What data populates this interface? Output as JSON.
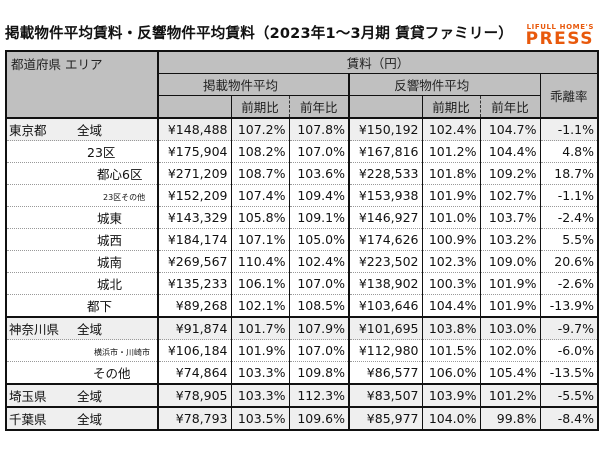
{
  "title": "掲載物件平均賃料・反響物件平均賃料（2023年1～3月期 賃貸ファミリー）",
  "logo": {
    "top": "LIFULL HOME'S",
    "bottom": "PRESS",
    "color": "#e8590c"
  },
  "header": {
    "area": "都道府県 エリア",
    "rent": "賃料（円）",
    "listed": "掲載物件平均",
    "response": "反響物件平均",
    "gap": "乖離率",
    "qoq": "前期比",
    "yoy": "前年比"
  },
  "rows": [
    {
      "pref": "東京都",
      "area": "全域",
      "listed": "¥148,488",
      "l_qoq": "107.2%",
      "l_yoy": "107.8%",
      "resp": "¥150,192",
      "r_qoq": "102.4%",
      "r_yoy": "104.7%",
      "gap": "-1.1%"
    },
    {
      "pref": "",
      "area": "23区",
      "listed": "¥175,904",
      "l_qoq": "108.2%",
      "l_yoy": "107.0%",
      "resp": "¥167,816",
      "r_qoq": "101.2%",
      "r_yoy": "104.4%",
      "gap": "4.8%"
    },
    {
      "pref": "",
      "area": "都心6区",
      "listed": "¥271,209",
      "l_qoq": "108.7%",
      "l_yoy": "103.6%",
      "resp": "¥228,533",
      "r_qoq": "101.8%",
      "r_yoy": "109.2%",
      "gap": "18.7%"
    },
    {
      "pref": "",
      "area": "23区その他",
      "listed": "¥152,209",
      "l_qoq": "107.4%",
      "l_yoy": "109.4%",
      "resp": "¥153,938",
      "r_qoq": "101.9%",
      "r_yoy": "102.7%",
      "gap": "-1.1%"
    },
    {
      "pref": "",
      "area": "城東",
      "listed": "¥143,329",
      "l_qoq": "105.8%",
      "l_yoy": "109.1%",
      "resp": "¥146,927",
      "r_qoq": "101.0%",
      "r_yoy": "103.7%",
      "gap": "-2.4%"
    },
    {
      "pref": "",
      "area": "城西",
      "listed": "¥184,174",
      "l_qoq": "107.1%",
      "l_yoy": "105.0%",
      "resp": "¥174,626",
      "r_qoq": "100.9%",
      "r_yoy": "103.2%",
      "gap": "5.5%"
    },
    {
      "pref": "",
      "area": "城南",
      "listed": "¥269,567",
      "l_qoq": "110.4%",
      "l_yoy": "102.4%",
      "resp": "¥223,502",
      "r_qoq": "102.3%",
      "r_yoy": "109.0%",
      "gap": "20.6%"
    },
    {
      "pref": "",
      "area": "城北",
      "listed": "¥135,233",
      "l_qoq": "106.1%",
      "l_yoy": "107.0%",
      "resp": "¥138,902",
      "r_qoq": "100.3%",
      "r_yoy": "101.9%",
      "gap": "-2.6%"
    },
    {
      "pref": "",
      "area": "都下",
      "listed": "¥89,268",
      "l_qoq": "102.1%",
      "l_yoy": "108.5%",
      "resp": "¥103,646",
      "r_qoq": "104.4%",
      "r_yoy": "101.9%",
      "gap": "-13.9%"
    },
    {
      "pref": "神奈川県",
      "area": "全域",
      "listed": "¥91,874",
      "l_qoq": "101.7%",
      "l_yoy": "107.9%",
      "resp": "¥101,695",
      "r_qoq": "103.8%",
      "r_yoy": "103.0%",
      "gap": "-9.7%"
    },
    {
      "pref": "",
      "area": "横浜市・川崎市",
      "listed": "¥106,184",
      "l_qoq": "101.9%",
      "l_yoy": "107.0%",
      "resp": "¥112,980",
      "r_qoq": "101.5%",
      "r_yoy": "102.0%",
      "gap": "-6.0%"
    },
    {
      "pref": "",
      "area": "その他",
      "listed": "¥74,864",
      "l_qoq": "103.3%",
      "l_yoy": "109.8%",
      "resp": "¥86,577",
      "r_qoq": "106.0%",
      "r_yoy": "105.4%",
      "gap": "-13.5%"
    },
    {
      "pref": "埼玉県",
      "area": "全域",
      "listed": "¥78,905",
      "l_qoq": "103.3%",
      "l_yoy": "112.3%",
      "resp": "¥83,507",
      "r_qoq": "103.9%",
      "r_yoy": "101.2%",
      "gap": "-5.5%"
    },
    {
      "pref": "千葉県",
      "area": "全域",
      "listed": "¥78,793",
      "l_qoq": "103.5%",
      "l_yoy": "109.6%",
      "resp": "¥85,977",
      "r_qoq": "104.0%",
      "r_yoy": "99.8%",
      "gap": "-8.4%"
    }
  ]
}
